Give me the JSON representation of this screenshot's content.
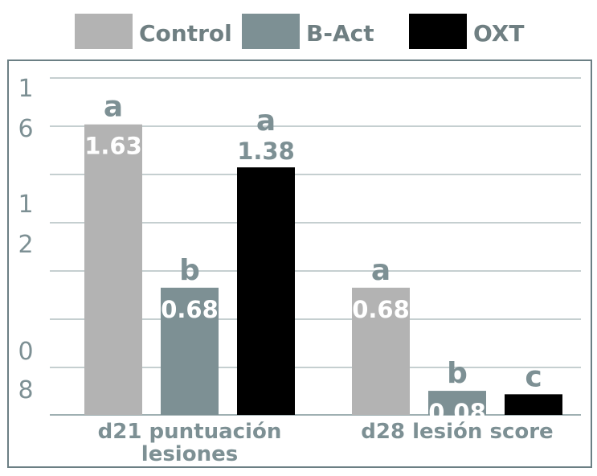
{
  "chart_data": {
    "type": "bar",
    "categories": [
      "d21 puntuación lesiones",
      "d28 lesión score"
    ],
    "category_label_lines": [
      [
        "d21 puntuación",
        "lesiones"
      ],
      [
        "d28 lesión score"
      ]
    ],
    "series": [
      {
        "name": "Control",
        "color": "#b3b3b3",
        "values": [
          1.63,
          0.68
        ],
        "value_labels": [
          "1.63",
          "0.68"
        ],
        "letters": [
          "a",
          "a"
        ]
      },
      {
        "name": "B-Act",
        "color": "#7d9094",
        "values": [
          0.68,
          0.08
        ],
        "value_labels": [
          "0.68",
          "0.08"
        ],
        "letters": [
          "b",
          "b"
        ]
      },
      {
        "name": "OXT",
        "color": "#000000",
        "values": [
          1.38,
          0.06
        ],
        "value_labels": [
          "1.38",
          ""
        ],
        "letters": [
          "a",
          "c"
        ]
      }
    ],
    "y_tick_labels": [
      "1\n6",
      "1\n2",
      "0\n8"
    ],
    "ylim": [
      -0.06,
      1.9
    ],
    "grid": true,
    "legend_position": "top",
    "text_color": "#7d9094",
    "frame_color": "#6b7f84"
  }
}
